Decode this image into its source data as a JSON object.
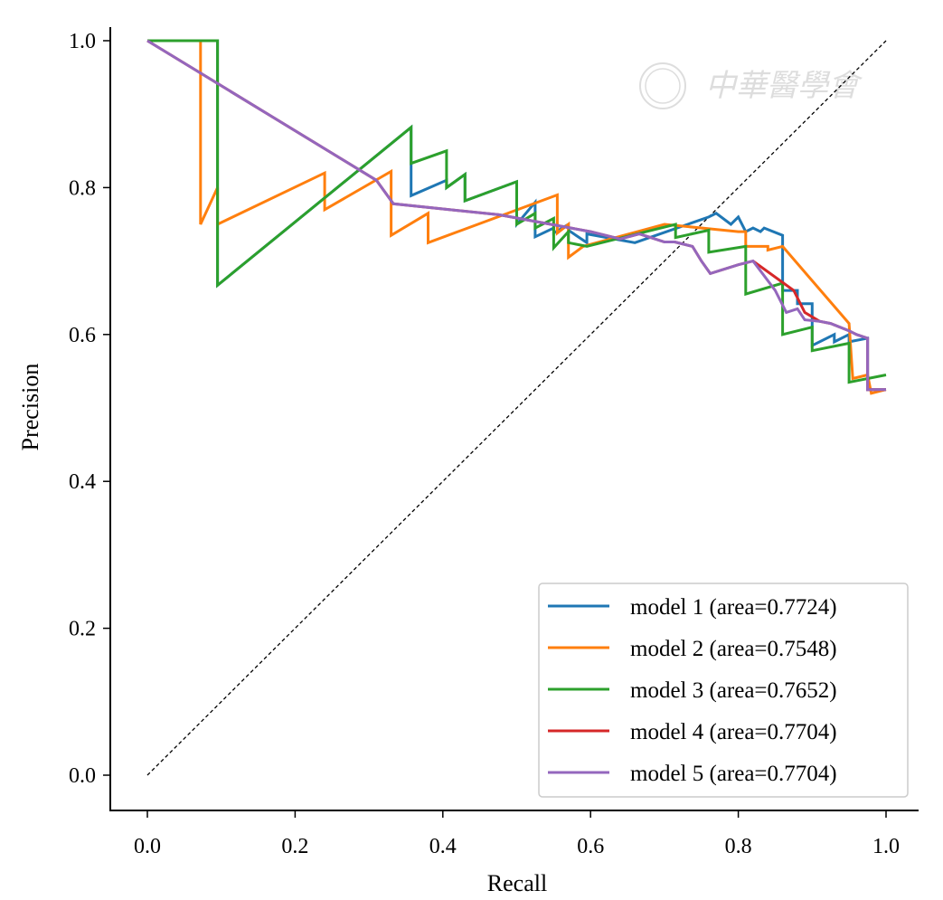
{
  "chart_data": {
    "type": "line",
    "xlabel": "Recall",
    "ylabel": "Precision",
    "xlim": [
      -0.05,
      1.04
    ],
    "ylim": [
      -0.05,
      1.02
    ],
    "xticks": [
      "0.0",
      "0.2",
      "0.4",
      "0.6",
      "0.8",
      "1.0"
    ],
    "yticks": [
      "0.0",
      "0.2",
      "0.4",
      "0.6",
      "0.8",
      "1.0"
    ],
    "grid": false,
    "legend_position": "lower-right",
    "reference_line": {
      "style": "dashed",
      "color": "#000000",
      "from": [
        0.0,
        0.0
      ],
      "to": [
        1.0,
        1.0
      ]
    },
    "watermark": "中華醫學會",
    "series": [
      {
        "name": "model 1 (area=0.7724)",
        "color": "#1f77b4",
        "x": [
          0.0,
          0.095,
          0.095,
          0.357,
          0.357,
          0.405,
          0.405,
          0.43,
          0.43,
          0.5,
          0.5,
          0.525,
          0.525,
          0.55,
          0.55,
          0.57,
          0.57,
          0.595,
          0.595,
          0.66,
          0.76,
          0.77,
          0.79,
          0.8,
          0.81,
          0.82,
          0.83,
          0.835,
          0.86,
          0.86,
          0.88,
          0.88,
          0.9,
          0.9,
          0.93,
          0.93,
          0.95,
          0.95,
          0.975,
          0.975,
          1.0
        ],
        "y": [
          1.0,
          1.0,
          0.667,
          0.882,
          0.789,
          0.81,
          0.8,
          0.818,
          0.782,
          0.808,
          0.75,
          0.78,
          0.733,
          0.745,
          0.738,
          0.75,
          0.742,
          0.725,
          0.737,
          0.725,
          0.76,
          0.765,
          0.75,
          0.76,
          0.74,
          0.745,
          0.74,
          0.745,
          0.735,
          0.66,
          0.66,
          0.642,
          0.642,
          0.585,
          0.6,
          0.59,
          0.6,
          0.59,
          0.595,
          0.525,
          0.525
        ]
      },
      {
        "name": "model 2 (area=0.7548)",
        "color": "#ff7f0e",
        "x": [
          0.0,
          0.072,
          0.072,
          0.095,
          0.095,
          0.24,
          0.24,
          0.33,
          0.33,
          0.38,
          0.38,
          0.555,
          0.555,
          0.57,
          0.57,
          0.59,
          0.59,
          0.7,
          0.8,
          0.81,
          0.81,
          0.84,
          0.84,
          0.86,
          0.95,
          0.955,
          0.975,
          0.98,
          1.0
        ],
        "y": [
          1.0,
          1.0,
          0.75,
          0.8,
          0.75,
          0.82,
          0.77,
          0.822,
          0.735,
          0.765,
          0.725,
          0.79,
          0.738,
          0.75,
          0.705,
          0.72,
          0.72,
          0.75,
          0.74,
          0.74,
          0.72,
          0.72,
          0.715,
          0.72,
          0.615,
          0.54,
          0.545,
          0.52,
          0.525
        ]
      },
      {
        "name": "model 3 (area=0.7652)",
        "color": "#2ca02c",
        "x": [
          0.0,
          0.095,
          0.095,
          0.357,
          0.357,
          0.405,
          0.405,
          0.43,
          0.43,
          0.5,
          0.5,
          0.525,
          0.525,
          0.55,
          0.55,
          0.57,
          0.57,
          0.595,
          0.595,
          0.715,
          0.715,
          0.76,
          0.76,
          0.81,
          0.81,
          0.86,
          0.86,
          0.9,
          0.9,
          0.95,
          0.95,
          1.0
        ],
        "y": [
          1.0,
          1.0,
          0.667,
          0.882,
          0.833,
          0.85,
          0.8,
          0.818,
          0.782,
          0.808,
          0.75,
          0.765,
          0.745,
          0.758,
          0.718,
          0.74,
          0.725,
          0.72,
          0.72,
          0.75,
          0.732,
          0.742,
          0.712,
          0.72,
          0.655,
          0.67,
          0.6,
          0.61,
          0.578,
          0.588,
          0.535,
          0.545
        ]
      },
      {
        "name": "model 4 (area=0.7704)",
        "color": "#d62728",
        "x": [
          0.0,
          0.31,
          0.333,
          0.476,
          0.6,
          0.64,
          0.666,
          0.7,
          0.714,
          0.738,
          0.75,
          0.762,
          0.8,
          0.82,
          0.875,
          0.89,
          0.91,
          0.925,
          0.95,
          0.96,
          0.975,
          0.975,
          1.0
        ],
        "y": [
          1.0,
          0.81,
          0.778,
          0.763,
          0.74,
          0.73,
          0.737,
          0.726,
          0.726,
          0.72,
          0.7,
          0.683,
          0.695,
          0.7,
          0.66,
          0.63,
          0.618,
          0.615,
          0.605,
          0.6,
          0.595,
          0.525,
          0.525
        ]
      },
      {
        "name": "model 5 (area=0.7704)",
        "color": "#9467bd",
        "x": [
          0.0,
          0.31,
          0.333,
          0.476,
          0.6,
          0.64,
          0.666,
          0.7,
          0.714,
          0.738,
          0.75,
          0.762,
          0.8,
          0.82,
          0.85,
          0.865,
          0.88,
          0.89,
          0.91,
          0.925,
          0.95,
          0.96,
          0.975,
          0.975,
          1.0
        ],
        "y": [
          1.0,
          0.81,
          0.778,
          0.763,
          0.74,
          0.73,
          0.737,
          0.726,
          0.726,
          0.72,
          0.7,
          0.683,
          0.695,
          0.7,
          0.66,
          0.63,
          0.635,
          0.62,
          0.618,
          0.615,
          0.605,
          0.6,
          0.595,
          0.525,
          0.525
        ]
      }
    ]
  }
}
